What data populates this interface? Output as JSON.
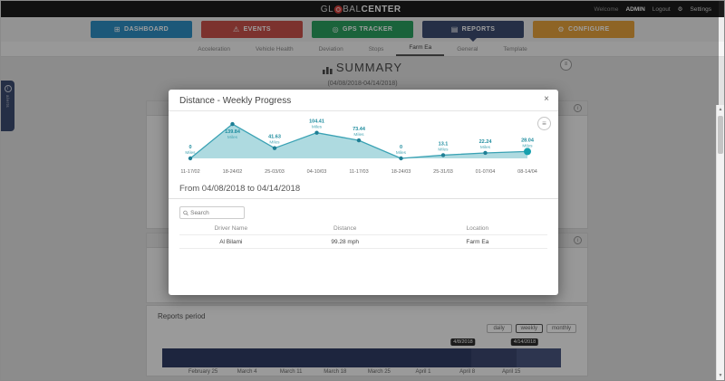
{
  "header": {
    "logo_part1": "GL",
    "logo_part2": "BAL",
    "logo_part3": "CENTER",
    "welcome_prefix": "Welcome",
    "username": "ADMIN",
    "logout_label": "Logout",
    "settings_label": "Settings"
  },
  "icons": {
    "dashboard": "⊞",
    "events": "⚠",
    "gps": "◎",
    "reports": "▤",
    "configure": "⚙",
    "settings": "⚙",
    "menu": "≡",
    "close": "×",
    "info": "i",
    "scroll_up": "▲",
    "scroll_down": "▼"
  },
  "nav": {
    "buttons": [
      {
        "label": "DASHBOARD",
        "color": "#2e8fc4"
      },
      {
        "label": "EVENTS",
        "color": "#c8524b"
      },
      {
        "label": "GPS TRACKER",
        "color": "#2ba05f"
      },
      {
        "label": "REPORTS",
        "color": "#3d4c71"
      },
      {
        "label": "CONFIGURE",
        "color": "#e5a23c"
      }
    ],
    "active": "REPORTS"
  },
  "tabs": {
    "items": [
      "Acceleration",
      "Vehicle Health",
      "Deviation",
      "Stops",
      "Farm Ea",
      "General",
      "Template"
    ],
    "active": "Farm Ea"
  },
  "side_tab": {
    "label": "alerts"
  },
  "summary": {
    "title": "SUMMARY",
    "date_range": "(04/08/2018-04/14/2018)"
  },
  "modal": {
    "title": "Distance - Weekly Progress",
    "from_to": "From 04/08/2018 to 04/14/2018",
    "search_placeholder": "Search",
    "table": {
      "headers": [
        "Driver Name",
        "Distance",
        "Location"
      ],
      "rows": [
        [
          "Al Bilami",
          "99.28 mph",
          "Farm Ea"
        ]
      ]
    }
  },
  "chart_data": {
    "type": "area",
    "title": "Distance - Weekly Progress",
    "unit": "Miles",
    "categories": [
      "11-17/02",
      "18-24/02",
      "25-03/03",
      "04-10/03",
      "11-17/03",
      "18-24/03",
      "25-31/03",
      "01-07/04",
      "08-14/04"
    ],
    "values": [
      0,
      139.84,
      41.63,
      104.41,
      73.44,
      0,
      13.1,
      22.24,
      28.04
    ],
    "labels": [
      "0",
      "139.84",
      "41.63",
      "104.41",
      "73.44",
      "0",
      "13.1",
      "22.24",
      "28.04"
    ],
    "ylim": [
      0,
      150
    ],
    "grid": false,
    "legend": false,
    "line_color": "#3aa2b4",
    "fill_color": "#a5d6dd",
    "marker_color": "#1f7f95",
    "last_point_color": "#16a0ae",
    "last_point_highlighted": true
  },
  "reports_period": {
    "title": "Reports period",
    "buttons": [
      "daily",
      "weekly",
      "monthly"
    ],
    "active_button": "weekly",
    "tooltips": [
      "4/8/2018",
      "4/14/2018"
    ],
    "axis_labels": [
      "February 25",
      "March 4",
      "March 11",
      "March 18",
      "March 25",
      "April 1",
      "April 8",
      "April 15"
    ],
    "bar_color": "#303c64"
  }
}
